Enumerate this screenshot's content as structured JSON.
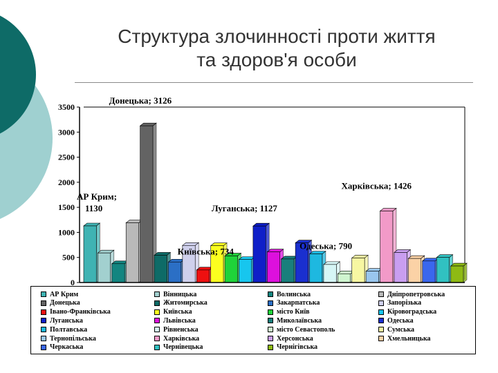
{
  "slide": {
    "title_line1": "Структура злочинності проти життя",
    "title_line2": "та здоров'я особи"
  },
  "theme": {
    "dark": "#0e6b67",
    "light": "#9fd0d0"
  },
  "chart_data": {
    "type": "bar",
    "ylim": [
      0,
      3500
    ],
    "yticks": [
      0,
      500,
      1000,
      1500,
      2000,
      2500,
      3000,
      3500
    ],
    "grid": false,
    "legend_placement": "bottom",
    "series": [
      {
        "name": "АР Крим",
        "value": 1130,
        "color": "#3fb3b3"
      },
      {
        "name": "Вінницька",
        "value": 590,
        "color": "#a2d0cf"
      },
      {
        "name": "Волинська",
        "value": 375,
        "color": "#138580"
      },
      {
        "name": "Дніпропетровська",
        "value": 1190,
        "color": "#b9b9b9"
      },
      {
        "name": "Донецька",
        "value": 3126,
        "color": "#636363"
      },
      {
        "name": "Житомирська",
        "value": 545,
        "color": "#0e6b67"
      },
      {
        "name": "Закарпатська",
        "value": 410,
        "color": "#2b6fc5"
      },
      {
        "name": "Запорізька",
        "value": 740,
        "color": "#cfd0ec"
      },
      {
        "name": "Івано-Франківська",
        "value": 250,
        "color": "#ee1010"
      },
      {
        "name": "Київська",
        "value": 734,
        "color": "#fbff1f"
      },
      {
        "name": "місто Київ",
        "value": 530,
        "color": "#1fd33a"
      },
      {
        "name": "Кіровоградська",
        "value": 460,
        "color": "#17c6ee"
      },
      {
        "name": "Луганська",
        "value": 1127,
        "color": "#0f1fc8"
      },
      {
        "name": "Львівська",
        "value": 610,
        "color": "#dd10dd"
      },
      {
        "name": "Миколаївська",
        "value": 470,
        "color": "#197f7c"
      },
      {
        "name": "Одеська",
        "value": 790,
        "color": "#1a2fcf"
      },
      {
        "name": "Полтавська",
        "value": 570,
        "color": "#1eb8e0"
      },
      {
        "name": "Рівненська",
        "value": 360,
        "color": "#d6f6f6"
      },
      {
        "name": "місто Севастополь",
        "value": 175,
        "color": "#cff5cf"
      },
      {
        "name": "Сумська",
        "value": 490,
        "color": "#f7f7a2"
      },
      {
        "name": "Тернопільська",
        "value": 225,
        "color": "#99c6ee"
      },
      {
        "name": "Харківська",
        "value": 1426,
        "color": "#f29ac8"
      },
      {
        "name": "Херсонська",
        "value": 600,
        "color": "#c99ef0"
      },
      {
        "name": "Хмельницька",
        "value": 480,
        "color": "#fbd2a6"
      },
      {
        "name": "Черкаська",
        "value": 430,
        "color": "#3a67ee"
      },
      {
        "name": "Чернівецька",
        "value": 500,
        "color": "#31c1c1"
      },
      {
        "name": "Чернігівська",
        "value": 330,
        "color": "#8eba14"
      }
    ],
    "annotations": [
      {
        "text": "Донецька; 3126",
        "series": "Донецька"
      },
      {
        "text": "АР Крим;",
        "text2": "1130",
        "series": "АР Крим"
      },
      {
        "text": "Київська; 734",
        "series": "Київська"
      },
      {
        "text": "Луганська; 1127",
        "series": "Луганська"
      },
      {
        "text": "Одеська; 790",
        "series": "Одеська"
      },
      {
        "text": "Харківська; 1426",
        "series": "Харківська"
      }
    ]
  }
}
